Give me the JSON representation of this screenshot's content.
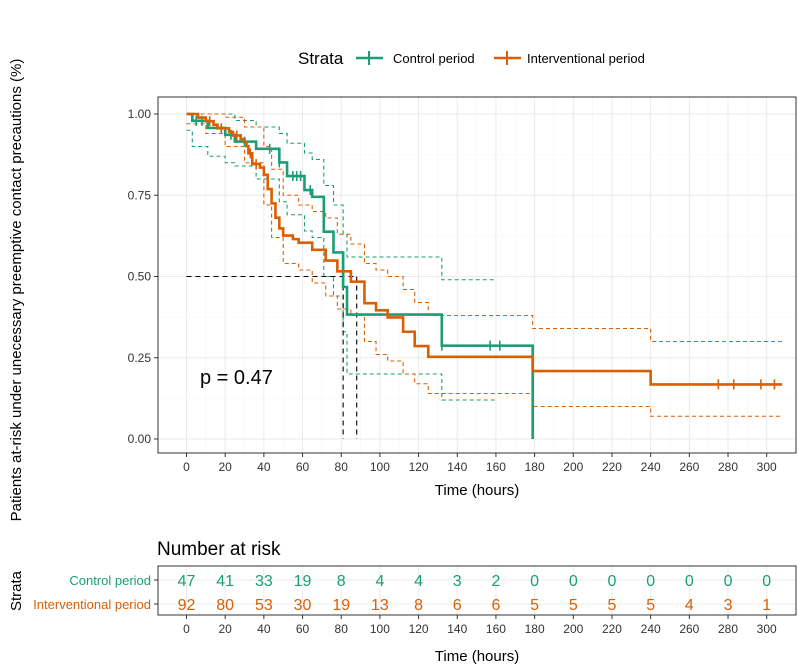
{
  "chart_data": {
    "type": "line",
    "subtype": "kaplan-meier",
    "ylabel": "Patients at-risk under unecessary preemptive contact precautions (%)",
    "xlabel": "Time (hours)",
    "xlim": [
      0,
      310
    ],
    "ylim": [
      0,
      1
    ],
    "x_ticks": [
      0,
      20,
      40,
      60,
      80,
      100,
      120,
      140,
      160,
      180,
      200,
      220,
      240,
      260,
      280,
      300
    ],
    "y_ticks": [
      0,
      0.25,
      0.5,
      0.75,
      1.0
    ],
    "y_tick_labels": [
      "0.00",
      "0.25",
      "0.50",
      "0.75",
      "1.00"
    ],
    "legend": {
      "title": "Strata",
      "position": "top",
      "entries": [
        "Control period",
        "Interventional period"
      ]
    },
    "p_value": "p = 0.47",
    "median_lines": {
      "y": 0.5,
      "x": [
        81,
        88
      ]
    },
    "colors": {
      "control": "#1b9e77",
      "interventional": "#d95f02"
    },
    "series": [
      {
        "name": "Control period",
        "color": "#1b9e77",
        "survival": [
          [
            0,
            1.0
          ],
          [
            3,
            0.979
          ],
          [
            11,
            0.957
          ],
          [
            20,
            0.936
          ],
          [
            25,
            0.915
          ],
          [
            36,
            0.893
          ],
          [
            48,
            0.851
          ],
          [
            52,
            0.809
          ],
          [
            61,
            0.766
          ],
          [
            65,
            0.745
          ],
          [
            71,
            0.638
          ],
          [
            76,
            0.574
          ],
          [
            81,
            0.468
          ],
          [
            83,
            0.383
          ],
          [
            132,
            0.287
          ],
          [
            178,
            0.287
          ],
          [
            179,
            0.0
          ]
        ],
        "upper": [
          [
            0,
            1.0
          ],
          [
            3,
            1.0
          ],
          [
            11,
            1.0
          ],
          [
            20,
            1.0
          ],
          [
            25,
            0.98
          ],
          [
            36,
            0.96
          ],
          [
            48,
            0.94
          ],
          [
            52,
            0.91
          ],
          [
            61,
            0.88
          ],
          [
            65,
            0.86
          ],
          [
            71,
            0.78
          ],
          [
            76,
            0.72
          ],
          [
            81,
            0.63
          ],
          [
            83,
            0.56
          ],
          [
            132,
            0.49
          ],
          [
            160,
            0.49
          ]
        ],
        "lower": [
          [
            0,
            0.95
          ],
          [
            3,
            0.9
          ],
          [
            11,
            0.87
          ],
          [
            20,
            0.85
          ],
          [
            25,
            0.84
          ],
          [
            36,
            0.8
          ],
          [
            48,
            0.73
          ],
          [
            52,
            0.69
          ],
          [
            61,
            0.64
          ],
          [
            65,
            0.62
          ],
          [
            71,
            0.5
          ],
          [
            76,
            0.44
          ],
          [
            81,
            0.33
          ],
          [
            83,
            0.2
          ],
          [
            132,
            0.12
          ],
          [
            160,
            0.12
          ]
        ],
        "censor_x": [
          5,
          8,
          23,
          30,
          43,
          48,
          55,
          57,
          59,
          64,
          132,
          157,
          162
        ]
      },
      {
        "name": "Interventional period",
        "color": "#d95f02",
        "survival": [
          [
            0,
            1.0
          ],
          [
            6,
            0.989
          ],
          [
            10,
            0.978
          ],
          [
            14,
            0.967
          ],
          [
            16,
            0.956
          ],
          [
            22,
            0.945
          ],
          [
            24,
            0.934
          ],
          [
            28,
            0.923
          ],
          [
            30,
            0.912
          ],
          [
            31,
            0.901
          ],
          [
            32,
            0.879
          ],
          [
            34,
            0.846
          ],
          [
            38,
            0.835
          ],
          [
            40,
            0.813
          ],
          [
            42,
            0.769
          ],
          [
            44,
            0.725
          ],
          [
            46,
            0.681
          ],
          [
            48,
            0.648
          ],
          [
            50,
            0.626
          ],
          [
            55,
            0.615
          ],
          [
            58,
            0.604
          ],
          [
            65,
            0.582
          ],
          [
            72,
            0.549
          ],
          [
            78,
            0.516
          ],
          [
            85,
            0.484
          ],
          [
            92,
            0.418
          ],
          [
            98,
            0.396
          ],
          [
            104,
            0.374
          ],
          [
            112,
            0.33
          ],
          [
            118,
            0.286
          ],
          [
            125,
            0.253
          ],
          [
            179,
            0.209
          ],
          [
            240,
            0.168
          ],
          [
            308,
            0.168
          ]
        ],
        "upper": [
          [
            0,
            1.0
          ],
          [
            10,
            1.0
          ],
          [
            20,
            0.99
          ],
          [
            30,
            0.96
          ],
          [
            40,
            0.9
          ],
          [
            44,
            0.83
          ],
          [
            50,
            0.75
          ],
          [
            58,
            0.72
          ],
          [
            65,
            0.7
          ],
          [
            72,
            0.68
          ],
          [
            78,
            0.63
          ],
          [
            85,
            0.6
          ],
          [
            92,
            0.54
          ],
          [
            98,
            0.52
          ],
          [
            104,
            0.5
          ],
          [
            112,
            0.46
          ],
          [
            118,
            0.42
          ],
          [
            125,
            0.38
          ],
          [
            179,
            0.34
          ],
          [
            240,
            0.3
          ],
          [
            308,
            0.3
          ]
        ],
        "lower": [
          [
            0,
            0.97
          ],
          [
            10,
            0.94
          ],
          [
            20,
            0.9
          ],
          [
            30,
            0.85
          ],
          [
            40,
            0.72
          ],
          [
            44,
            0.62
          ],
          [
            50,
            0.54
          ],
          [
            58,
            0.52
          ],
          [
            65,
            0.48
          ],
          [
            72,
            0.44
          ],
          [
            78,
            0.4
          ],
          [
            85,
            0.38
          ],
          [
            92,
            0.3
          ],
          [
            98,
            0.26
          ],
          [
            104,
            0.24
          ],
          [
            112,
            0.2
          ],
          [
            118,
            0.17
          ],
          [
            125,
            0.14
          ],
          [
            179,
            0.1
          ],
          [
            240,
            0.07
          ],
          [
            308,
            0.07
          ]
        ],
        "censor_x": [
          12,
          18,
          26,
          33,
          36,
          275,
          283,
          297,
          304
        ]
      }
    ]
  },
  "risk_table": {
    "title": "Number at risk",
    "y_title": "Strata",
    "xlabel": "Time (hours)",
    "x_ticks": [
      0,
      20,
      40,
      60,
      80,
      100,
      120,
      140,
      160,
      180,
      200,
      220,
      240,
      260,
      280,
      300
    ],
    "rows": [
      {
        "name": "Control period",
        "color": "#1b9e77",
        "values": [
          "47",
          "41",
          "33",
          "19",
          "8",
          "4",
          "4",
          "3",
          "2",
          "0",
          "0",
          "0",
          "0",
          "0",
          "0",
          "0"
        ]
      },
      {
        "name": "Interventional period",
        "color": "#d95f02",
        "values": [
          "92",
          "80",
          "53",
          "30",
          "19",
          "13",
          "8",
          "6",
          "6",
          "5",
          "5",
          "5",
          "5",
          "4",
          "3",
          "1"
        ]
      }
    ]
  }
}
